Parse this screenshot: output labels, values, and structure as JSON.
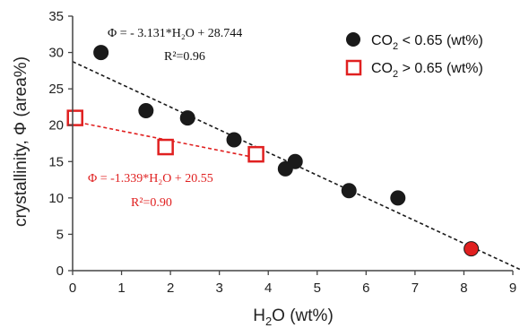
{
  "chart_data": {
    "type": "scatter",
    "xlabel": {
      "base": "H",
      "sub": "2",
      "rest": "O (wt%)"
    },
    "ylabel": "crystallinity, Φ (area%)",
    "xlim": [
      0,
      9
    ],
    "ylim": [
      0,
      35
    ],
    "xticks": [
      "0",
      "1",
      "2",
      "3",
      "4",
      "5",
      "6",
      "7",
      "8",
      "9"
    ],
    "yticks": [
      "0",
      "5",
      "10",
      "15",
      "20",
      "25",
      "30",
      "35"
    ],
    "grid": false,
    "legend_position": "top-right",
    "series": [
      {
        "name": {
          "base": "CO",
          "sub": "2",
          "rest": " < 0.65 (wt%)"
        },
        "marker": "filled-circle",
        "color": "#1a1a1a",
        "points": [
          {
            "x": 0.58,
            "y": 30
          },
          {
            "x": 1.5,
            "y": 22
          },
          {
            "x": 2.35,
            "y": 21
          },
          {
            "x": 3.3,
            "y": 18
          },
          {
            "x": 4.35,
            "y": 14
          },
          {
            "x": 4.55,
            "y": 15
          },
          {
            "x": 5.65,
            "y": 11
          },
          {
            "x": 6.65,
            "y": 10
          },
          {
            "x": 8.15,
            "y": 3,
            "highlight_color": "#e02020"
          }
        ]
      },
      {
        "name": {
          "base": "CO",
          "sub": "2",
          "rest": " > 0.65 (wt%)"
        },
        "marker": "open-square",
        "color": "#e02020",
        "points": [
          {
            "x": 0.05,
            "y": 21
          },
          {
            "x": 1.9,
            "y": 17
          },
          {
            "x": 3.75,
            "y": 16
          }
        ]
      }
    ],
    "fits": [
      {
        "equation": "Φ = - 3.131*H₂O + 28.744",
        "r2": "R²=0.96",
        "slope": -3.131,
        "intercept": 28.744,
        "x_range": [
          0,
          9.2
        ],
        "color": "#1a1a1a"
      },
      {
        "equation": "Φ = -1.339*H₂O + 20.55",
        "r2": "R²=0.90",
        "slope": -1.339,
        "intercept": 20.55,
        "x_range": [
          0,
          3.85
        ],
        "color": "#e02020"
      }
    ]
  }
}
